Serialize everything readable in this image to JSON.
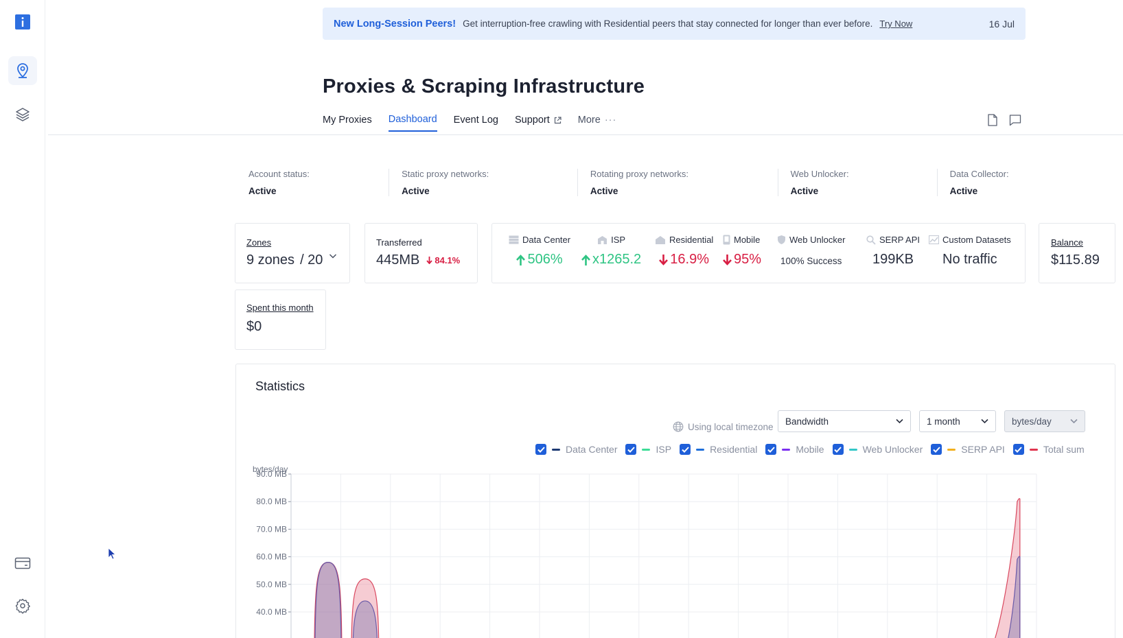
{
  "sidebar": {
    "items": [
      {
        "icon": "info-icon"
      },
      {
        "icon": "location-pin-icon"
      },
      {
        "icon": "layers-icon"
      },
      {
        "icon": "billing-card-icon"
      },
      {
        "icon": "gear-icon"
      }
    ]
  },
  "banner": {
    "title": "New Long-Session Peers!",
    "text": "Get interruption-free crawling with Residential peers that stay connected for longer than ever before.",
    "link": "Try Now",
    "date": "16 Jul"
  },
  "page": {
    "title": "Proxies & Scraping Infrastructure"
  },
  "tabs": [
    {
      "label": "My Proxies",
      "active": false
    },
    {
      "label": "Dashboard",
      "active": true
    },
    {
      "label": "Event Log",
      "active": false
    },
    {
      "label": "Support",
      "active": false
    },
    {
      "label": "More",
      "active": false
    }
  ],
  "status": [
    {
      "label": "Account status:",
      "value": "Active"
    },
    {
      "label": "Static proxy networks:",
      "value": "Active"
    },
    {
      "label": "Rotating proxy networks:",
      "value": "Active"
    },
    {
      "label": "Web Unlocker:",
      "value": "Active"
    },
    {
      "label": "Data Collector:",
      "value": "Active"
    }
  ],
  "zones": {
    "label": "Zones",
    "value": "9 zones",
    "max": "/ 20"
  },
  "transferred": {
    "label": "Transferred",
    "value": "445MB",
    "change": "84.1%"
  },
  "networks": [
    {
      "name": "Data Center",
      "value": "506%",
      "trend": "up"
    },
    {
      "name": "ISP",
      "value": "x1265.2",
      "trend": "up"
    },
    {
      "name": "Residential",
      "value": "16.9%",
      "trend": "down"
    },
    {
      "name": "Mobile",
      "value": "95%",
      "trend": "down"
    },
    {
      "name": "Web Unlocker",
      "value": "100% Success",
      "trend": "none"
    },
    {
      "name": "SERP API",
      "value": "199KB",
      "trend": "none"
    },
    {
      "name": "Custom Datasets",
      "value": "No traffic",
      "trend": "none"
    }
  ],
  "balance": {
    "label": "Balance",
    "value": "$115.89"
  },
  "spent": {
    "label": "Spent this month",
    "value": "$0"
  },
  "statistics": {
    "title": "Statistics",
    "timezone": "Using local timezone",
    "metric": "Bandwidth",
    "period": "1 month",
    "unit": "bytes/day"
  },
  "legend": [
    {
      "name": "Data Center",
      "color": "#1d3a73"
    },
    {
      "name": "ISP",
      "color": "#3ddc97"
    },
    {
      "name": "Residential",
      "color": "#1f6fd9"
    },
    {
      "name": "Mobile",
      "color": "#7b2ff0"
    },
    {
      "name": "Web Unlocker",
      "color": "#33c7c7"
    },
    {
      "name": "SERP API",
      "color": "#f2b01e"
    },
    {
      "name": "Total sum",
      "color": "#e0354f"
    }
  ],
  "chart_data": {
    "type": "area",
    "title": "Statistics",
    "ylabel": "bytes/day",
    "yticks": [
      "90.0 MB",
      "80.0 MB",
      "70.0 MB",
      "60.0 MB",
      "50.0 MB",
      "40.0 MB"
    ],
    "ylim": [
      35,
      90
    ],
    "series": [
      {
        "name": "Total sum",
        "peaks": [
          {
            "day": 2,
            "value": 58
          },
          {
            "day": 3.5,
            "value": 52
          },
          {
            "day": 30,
            "value": 81
          }
        ]
      },
      {
        "name": "Mobile",
        "peaks": [
          {
            "day": 2,
            "value": 58
          },
          {
            "day": 3.5,
            "value": 44
          },
          {
            "day": 30,
            "value": 60
          }
        ]
      }
    ]
  }
}
